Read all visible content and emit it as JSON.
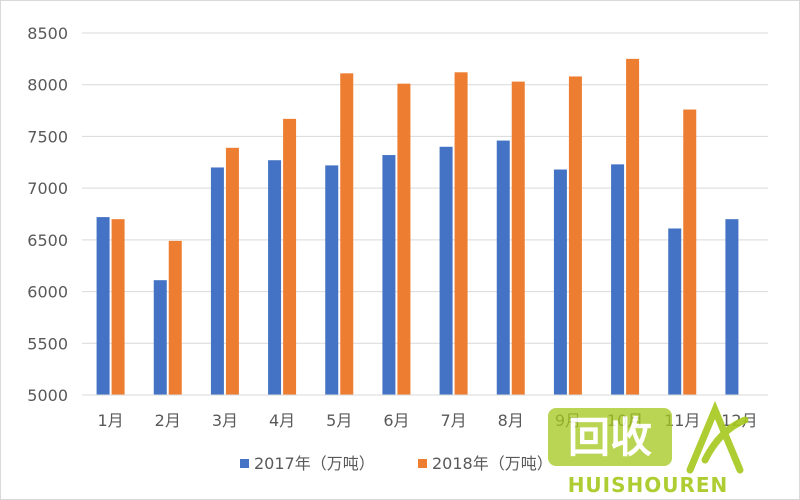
{
  "chart_data": {
    "type": "bar",
    "categories": [
      "1月",
      "2月",
      "3月",
      "4月",
      "5月",
      "6月",
      "7月",
      "8月",
      "9月",
      "10月",
      "11月",
      "12月"
    ],
    "series": [
      {
        "name": "2017年（万吨）",
        "color": "#4472c4",
        "values": [
          6720,
          6110,
          7200,
          7270,
          7220,
          7320,
          7400,
          7460,
          7180,
          7230,
          6610,
          6700
        ]
      },
      {
        "name": "2018年（万吨）",
        "color": "#ed7d31",
        "values": [
          6700,
          6490,
          7390,
          7670,
          8110,
          8010,
          8120,
          8030,
          8080,
          8250,
          7760,
          null
        ]
      }
    ],
    "ylim": [
      5000,
      8500
    ],
    "yticks": [
      "5000",
      "5500",
      "6000",
      "6500",
      "7000",
      "7500",
      "8000",
      "8500"
    ],
    "grid": true,
    "legend_position": "bottom"
  },
  "watermark": {
    "logo_text": "回收",
    "brand_text": "HUISHOUREN",
    "color": "#a6c81e"
  }
}
